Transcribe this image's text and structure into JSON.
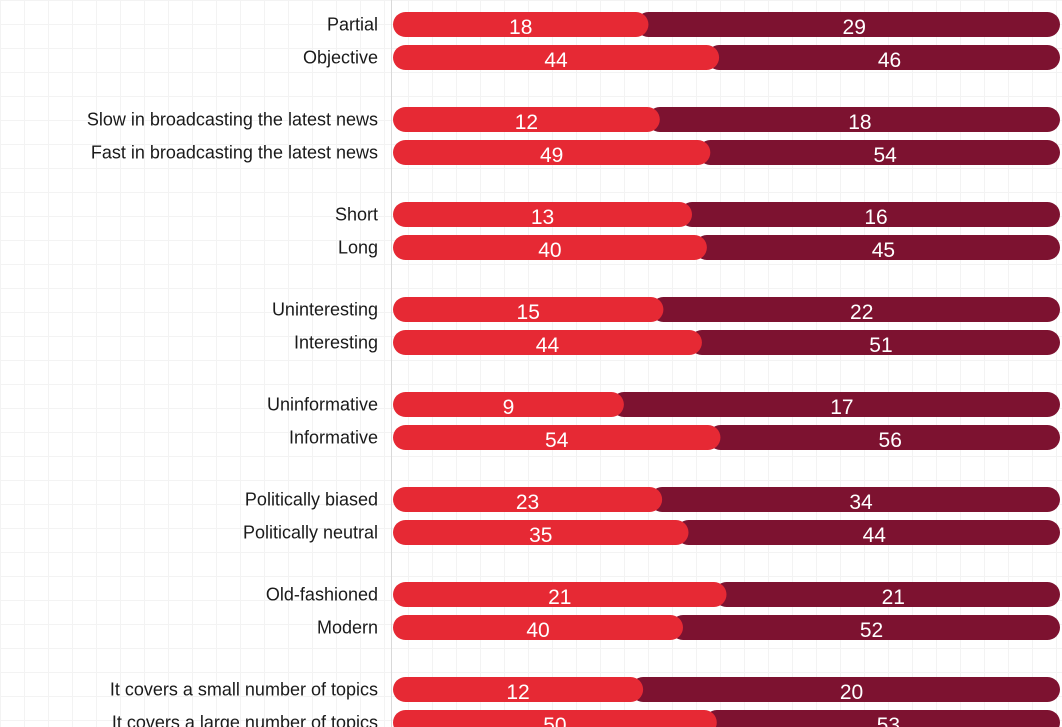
{
  "chart_data": {
    "type": "bar",
    "stacked": true,
    "orientation": "horizontal",
    "grid": true,
    "categories": [
      "Partial",
      "Objective",
      "Slow in broadcasting the latest news",
      "Fast in broadcasting the latest news",
      "Short",
      "Long",
      "Uninteresting",
      "Interesting",
      "Uninformative",
      "Informative",
      "Politically biased",
      "Politically neutral",
      "Old-fashioned",
      "Modern",
      "It covers a small number of topics",
      "It covers a large number of topics"
    ],
    "series": [
      {
        "color": "#e62934",
        "values": [
          18,
          44,
          12,
          49,
          13,
          40,
          15,
          44,
          9,
          54,
          23,
          35,
          21,
          40,
          12,
          50
        ]
      },
      {
        "color": "#7d1230",
        "values": [
          29,
          46,
          18,
          54,
          16,
          45,
          22,
          51,
          17,
          56,
          34,
          44,
          21,
          52,
          20,
          53
        ]
      }
    ],
    "title": "",
    "xlabel": "",
    "ylabel": ""
  }
}
